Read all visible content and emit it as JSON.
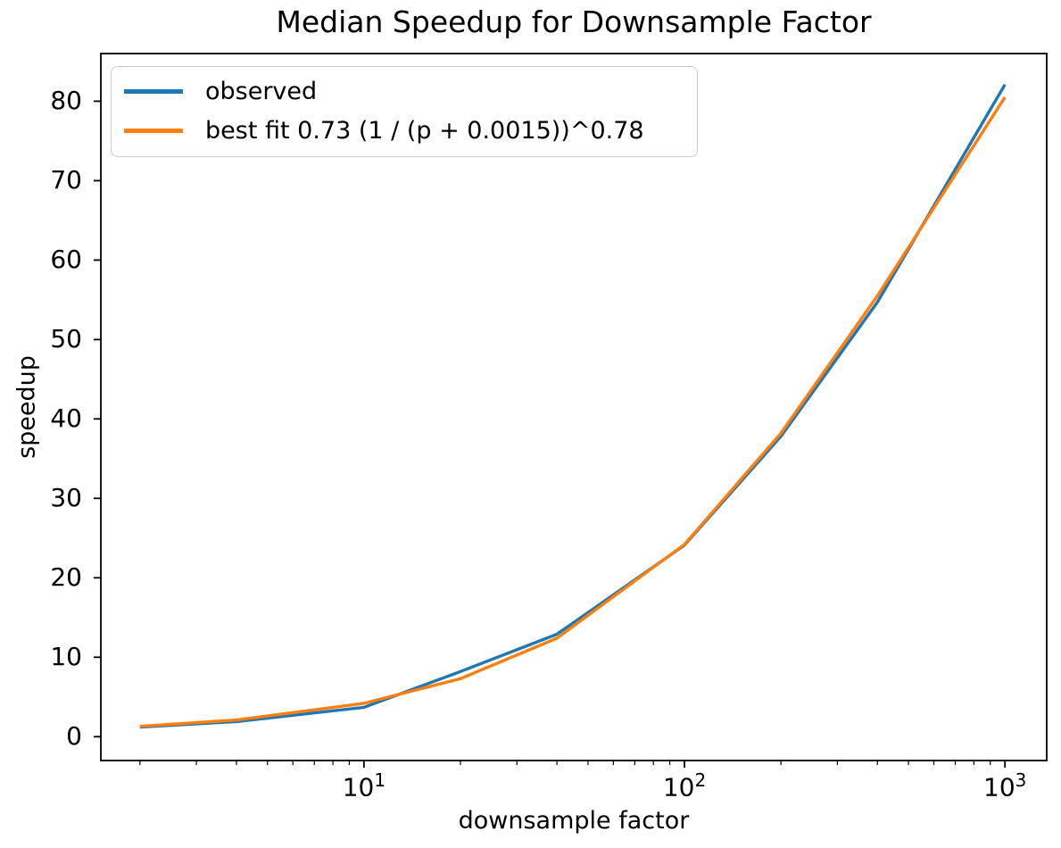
{
  "chart_data": {
    "type": "line",
    "title": "Median Speedup for Downsample Factor",
    "xlabel": "downsample factor",
    "ylabel": "speedup",
    "xscale": "log",
    "grid": false,
    "legend_position": "upper left",
    "xlim": [
      1.51,
      1350
    ],
    "ylim": [
      -3.0,
      86.0
    ],
    "xticks": [
      10,
      100,
      1000
    ],
    "xticklabels": [
      {
        "base": "10",
        "exp": "1"
      },
      {
        "base": "10",
        "exp": "2"
      },
      {
        "base": "10",
        "exp": "3"
      }
    ],
    "yticks": [
      0,
      10,
      20,
      30,
      40,
      50,
      60,
      70,
      80
    ],
    "x": [
      2,
      4,
      10,
      20,
      40,
      100,
      200,
      400,
      1000
    ],
    "series": [
      {
        "name": "observed",
        "color": "#1f77b4",
        "values": [
          1.2,
          1.9,
          3.7,
          8.2,
          12.9,
          24.1,
          37.8,
          54.7,
          82.1
        ]
      },
      {
        "name": "best fit 0.73 (1 / (p + 0.0015))^0.78",
        "color": "#ff7f0e",
        "values": [
          1.3,
          2.1,
          4.2,
          7.3,
          12.4,
          24.2,
          38.2,
          55.5,
          80.5
        ]
      }
    ],
    "frame_color": "#000000",
    "background_color": "#ffffff"
  }
}
